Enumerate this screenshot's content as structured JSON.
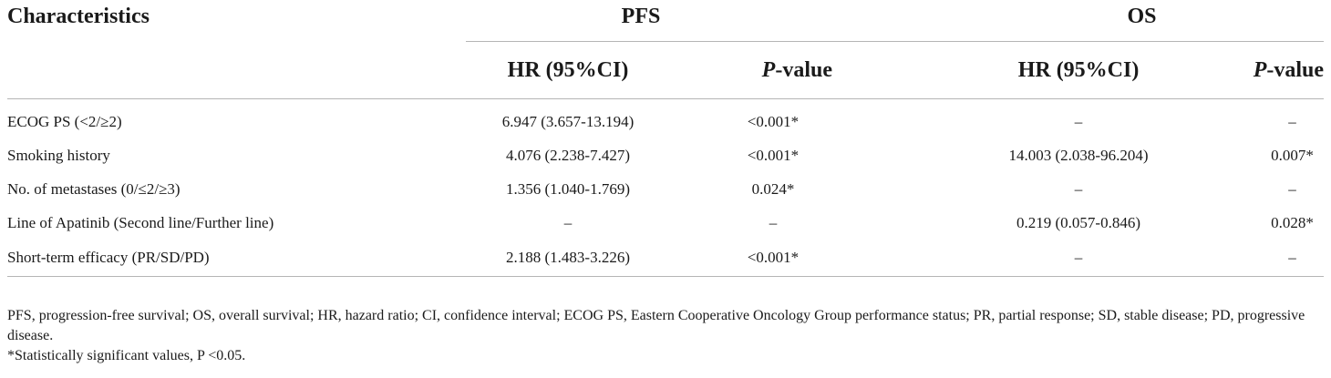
{
  "headers": {
    "characteristics": "Characteristics",
    "pfs": "PFS",
    "os": "OS",
    "hr": "HR (95%CI)",
    "p_italic": "P",
    "p_rest": "-value"
  },
  "rows": [
    {
      "label": "ECOG PS (<2/≥2)",
      "pfs_hr": "6.947 (3.657-13.194)",
      "pfs_p": "<0.001*",
      "os_hr": "–",
      "os_p": "–"
    },
    {
      "label": "Smoking history",
      "pfs_hr": "4.076 (2.238-7.427)",
      "pfs_p": "<0.001*",
      "os_hr": "14.003 (2.038-96.204)",
      "os_p": "0.007*"
    },
    {
      "label": "No. of metastases (0/≤2/≥3)",
      "pfs_hr": "1.356 (1.040-1.769)",
      "pfs_p": "0.024*",
      "os_hr": "–",
      "os_p": "–"
    },
    {
      "label": "Line of Apatinib (Second line/Further line)",
      "pfs_hr": "–",
      "pfs_p": "–",
      "os_hr": "0.219 (0.057-0.846)",
      "os_p": "0.028*"
    },
    {
      "label": "Short-term efficacy (PR/SD/PD)",
      "pfs_hr": "2.188 (1.483-3.226)",
      "pfs_p": "<0.001*",
      "os_hr": "–",
      "os_p": "–"
    }
  ],
  "footnotes": {
    "abbreviations": "PFS, progression-free survival; OS, overall survival; HR, hazard ratio; CI, confidence interval; ECOG PS, Eastern Cooperative Oncology Group performance status; PR, partial response; SD, stable disease; PD, progressive disease.",
    "significance": "*Statistically significant values, P <0.05."
  }
}
